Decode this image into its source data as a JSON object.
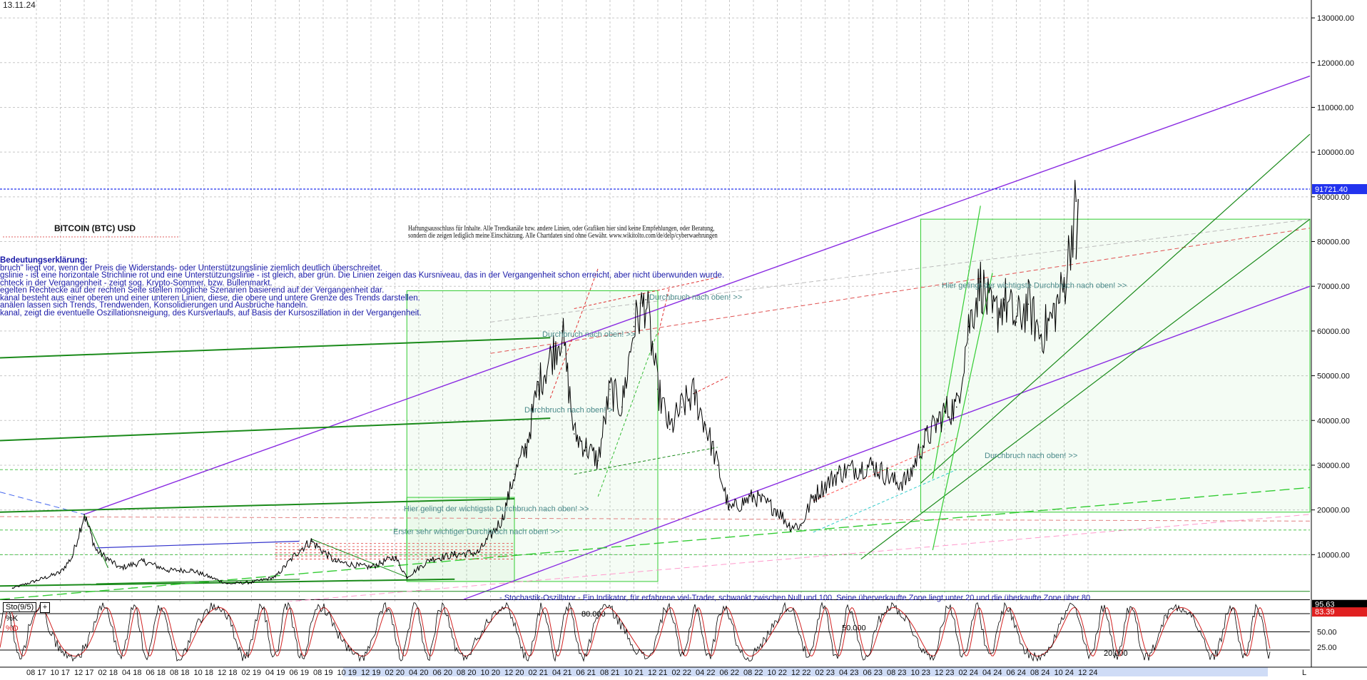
{
  "header": {
    "date": "13.11.24",
    "title": "BITCOIN (BTC) USD",
    "disclaimer_line1": "Haftungsausschluss für Inhalte. Alle Trendkanäle bzw. andere Linien, oder Grafiken hier sind keine Empfehlungen, oder Beratung,",
    "disclaimer_line2": "sondern die zeigen lediglich meine  Einschätzung. Alle Chartdaten sind ohne Gewähr.  www.wikitolto.com/de/delp/cyberwaehrungen"
  },
  "legend": {
    "heading": "Bedeutungserklärung:",
    "lines": [
      "bruch\" liegt vor, wenn der Preis die Widerstands- oder Unterstützungslinie ziemlich deutlich überschreitet.",
      "gslinie - ist eine horizontale Strichlinie rot und eine Unterstützungslinie - ist gleich, aber grün. Die Linien zeigen das Kursniveau, das in der Vergangenheit schon erreicht, aber nicht überwunden wurde.",
      "chteck in der Vergangenheit - zeigt sog. Krypto-Sommer, bzw. Bullenmarkt.",
      "egelten Rechtecke auf der rechten Seite stellen mögliche Szenarien basierend auf der Vergangenheit dar.",
      "kanal besteht aus einer oberen und einer unteren Linien, diese, die obere und untere Grenze des Trends darstellen.",
      "anälen lassen sich Trends, Trendwenden, Konsolidierungen und Ausbrüche handeln.",
      "kanal, zeigt die eventuelle Oszillationsneigung, des Kursverlaufs, auf Basis der Kursoszillation in der Vergangenheit."
    ]
  },
  "annotations": {
    "durchbruch": "Durchbruch nach oben! >>",
    "durchbruch_short": "Durchbruch nach oben! >",
    "wichtigste": "Hier gelingt der wichtigste Durchbruch nach oben! >>",
    "erster": "Erster sehr wichtiger Durchbruch nach oben! >>",
    "stochastik_note": "- Stochastik-Oszillator - Ein Indikator, für erfahrene viel-Trader, schwankt zwischen Null und 100. Seine überverkaufte Zone  liegt unter 20 und die überkaufte Zone  über 80",
    "osc_80": "80.000",
    "osc_50": "50.000",
    "osc_20": "20.000"
  },
  "oscillator": {
    "name": "Sto(9/5)",
    "k_label": "%K",
    "d_label": "%D",
    "k_value": "95.63",
    "d_value": "83.39",
    "axis_ticks": [
      "50.00",
      "25.00"
    ]
  },
  "colors": {
    "price": "#000000",
    "purple_channel": "#8a2be2",
    "green_line": "#1a8a1a",
    "light_green": "#33cc33",
    "red_dashed": "#e03030",
    "current_price_line": "#2233ee",
    "k_line": "#000000",
    "d_line": "#d22222"
  },
  "chart_data": {
    "type": "line",
    "title": "BITCOIN (BTC) USD",
    "y_ticks": [
      "130000.00",
      "120000.00",
      "110000.00",
      "100000.00",
      "90000.00",
      "80000.00",
      "70000.00",
      "60000.00",
      "50000.00",
      "40000.00",
      "30000.00",
      "20000.00",
      "10000.00"
    ],
    "ylim": [
      0,
      134000
    ],
    "current_price": "91721.40",
    "x_ticks": [
      "08 17",
      "10 17",
      "12 17",
      "02 18",
      "04 18",
      "06 18",
      "08 18",
      "10 18",
      "12 18",
      "02 19",
      "04 19",
      "06 19",
      "08 19",
      "10 19",
      "12 19",
      "02 20",
      "04 20",
      "06 20",
      "08 20",
      "10 20",
      "12 20",
      "02 21",
      "04 21",
      "06 21",
      "08 21",
      "10 21",
      "12 21",
      "02 22",
      "04 22",
      "06 22",
      "08 22",
      "10 22",
      "12 22",
      "02 23",
      "04 23",
      "06 23",
      "08 23",
      "10 23",
      "12 23",
      "02 24",
      "04 24",
      "06 24",
      "08 24",
      "10 24",
      "12 24"
    ],
    "series": [
      {
        "values": [
          {
            "x": "2017-06",
            "y": 2500
          },
          {
            "x": "2017-08",
            "y": 4200
          },
          {
            "x": "2017-10",
            "y": 6000
          },
          {
            "x": "2017-11",
            "y": 9500
          },
          {
            "x": "2017-12",
            "y": 19000
          },
          {
            "x": "2018-01",
            "y": 11000
          },
          {
            "x": "2018-02",
            "y": 9000
          },
          {
            "x": "2018-03",
            "y": 7000
          },
          {
            "x": "2018-05",
            "y": 8500
          },
          {
            "x": "2018-07",
            "y": 6500
          },
          {
            "x": "2018-09",
            "y": 6500
          },
          {
            "x": "2018-11",
            "y": 4500
          },
          {
            "x": "2018-12",
            "y": 3500
          },
          {
            "x": "2019-02",
            "y": 3800
          },
          {
            "x": "2019-04",
            "y": 5000
          },
          {
            "x": "2019-06",
            "y": 11000
          },
          {
            "x": "2019-07",
            "y": 13000
          },
          {
            "x": "2019-09",
            "y": 8500
          },
          {
            "x": "2019-11",
            "y": 7500
          },
          {
            "x": "2019-12",
            "y": 7200
          },
          {
            "x": "2020-02",
            "y": 9500
          },
          {
            "x": "2020-03",
            "y": 5000
          },
          {
            "x": "2020-05",
            "y": 9000
          },
          {
            "x": "2020-07",
            "y": 10000
          },
          {
            "x": "2020-09",
            "y": 10500
          },
          {
            "x": "2020-11",
            "y": 18000
          },
          {
            "x": "2020-12",
            "y": 28000
          },
          {
            "x": "2021-01",
            "y": 34000
          },
          {
            "x": "2021-02",
            "y": 48000
          },
          {
            "x": "2021-04",
            "y": 60000
          },
          {
            "x": "2021-05",
            "y": 37000
          },
          {
            "x": "2021-06",
            "y": 34000
          },
          {
            "x": "2021-07",
            "y": 31000
          },
          {
            "x": "2021-08",
            "y": 47000
          },
          {
            "x": "2021-09",
            "y": 43000
          },
          {
            "x": "2021-10",
            "y": 61000
          },
          {
            "x": "2021-11",
            "y": 67000
          },
          {
            "x": "2021-12",
            "y": 47000
          },
          {
            "x": "2022-01",
            "y": 38000
          },
          {
            "x": "2022-02",
            "y": 43000
          },
          {
            "x": "2022-03",
            "y": 46000
          },
          {
            "x": "2022-04",
            "y": 39000
          },
          {
            "x": "2022-05",
            "y": 30000
          },
          {
            "x": "2022-06",
            "y": 20000
          },
          {
            "x": "2022-08",
            "y": 23000
          },
          {
            "x": "2022-10",
            "y": 20000
          },
          {
            "x": "2022-11",
            "y": 16500
          },
          {
            "x": "2022-12",
            "y": 16500
          },
          {
            "x": "2023-01",
            "y": 23000
          },
          {
            "x": "2023-03",
            "y": 28000
          },
          {
            "x": "2023-04",
            "y": 29000
          },
          {
            "x": "2023-06",
            "y": 30000
          },
          {
            "x": "2023-08",
            "y": 26000
          },
          {
            "x": "2023-09",
            "y": 27000
          },
          {
            "x": "2023-10",
            "y": 34000
          },
          {
            "x": "2023-12",
            "y": 42000
          },
          {
            "x": "2024-01",
            "y": 43000
          },
          {
            "x": "2024-02",
            "y": 61000
          },
          {
            "x": "2024-03",
            "y": 71000
          },
          {
            "x": "2024-04",
            "y": 63000
          },
          {
            "x": "2024-05",
            "y": 67000
          },
          {
            "x": "2024-06",
            "y": 62000
          },
          {
            "x": "2024-07",
            "y": 66000
          },
          {
            "x": "2024-08",
            "y": 59000
          },
          {
            "x": "2024-09",
            "y": 63000
          },
          {
            "x": "2024-10",
            "y": 70000
          },
          {
            "x": "2024-11",
            "y": 89000
          }
        ]
      }
    ]
  }
}
